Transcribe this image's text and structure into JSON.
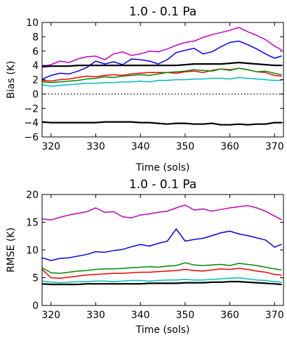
{
  "chart_data": [
    {
      "type": "line",
      "title": "1.0 - 0.1 Pa",
      "xlabel": "Time (sols)",
      "ylabel": "Bias (K)",
      "xlim": [
        318,
        372
      ],
      "ylim": [
        -6,
        10
      ],
      "xticks": [
        320,
        330,
        340,
        350,
        360,
        370
      ],
      "xtick_labels": [
        "320",
        "330",
        "340",
        "350",
        "360",
        "370"
      ],
      "yticks": [
        -6,
        -4,
        -2,
        0,
        2,
        4,
        6,
        8,
        10
      ],
      "ytick_labels": [
        "−6",
        "−4",
        "−2",
        "0",
        "2",
        "4",
        "6",
        "8",
        "10"
      ],
      "grid": false,
      "zero_line": {
        "y": 0,
        "style": "dotted",
        "color": "#000000"
      },
      "series": [
        {
          "color": "#c000c0",
          "x": [
            318,
            320,
            322,
            324,
            326,
            328,
            330,
            332,
            334,
            336,
            338,
            340,
            342,
            344,
            346,
            348,
            350,
            352,
            354,
            356,
            358,
            360,
            362,
            364,
            366,
            368,
            370,
            371.5
          ],
          "values": [
            3.9,
            4.1,
            4.6,
            4.4,
            4.9,
            5.2,
            5.3,
            4.8,
            5.6,
            5.9,
            5.4,
            5.6,
            6.0,
            5.9,
            6.3,
            6.8,
            7.2,
            7.4,
            7.9,
            8.3,
            8.6,
            8.9,
            9.3,
            8.7,
            8.2,
            7.6,
            6.7,
            6.2
          ]
        },
        {
          "color": "#0000ee",
          "x": [
            318,
            320,
            322,
            324,
            326,
            328,
            330,
            332,
            334,
            336,
            338,
            340,
            342,
            344,
            346,
            348,
            350,
            352,
            354,
            356,
            358,
            360,
            362,
            364,
            366,
            368,
            370,
            371.5
          ],
          "values": [
            2.1,
            2.6,
            2.9,
            2.8,
            3.2,
            3.7,
            4.6,
            4.2,
            4.5,
            4.1,
            4.9,
            4.8,
            4.6,
            4.2,
            4.8,
            5.8,
            6.1,
            6.4,
            5.6,
            5.9,
            6.6,
            7.2,
            7.4,
            6.9,
            6.3,
            5.6,
            5.0,
            5.3
          ]
        },
        {
          "color": "#000000",
          "x": [
            318,
            320,
            322,
            324,
            326,
            328,
            330,
            332,
            334,
            336,
            338,
            340,
            342,
            344,
            346,
            348,
            350,
            352,
            354,
            356,
            358,
            360,
            362,
            364,
            366,
            368,
            370,
            371.5
          ],
          "values": [
            3.8,
            3.9,
            3.9,
            3.9,
            4.0,
            4.0,
            4.0,
            4.0,
            4.0,
            4.0,
            4.0,
            4.0,
            4.0,
            4.0,
            4.0,
            4.0,
            4.1,
            4.2,
            4.2,
            4.2,
            4.2,
            4.3,
            4.4,
            4.3,
            4.2,
            4.1,
            4.0,
            4.0
          ]
        },
        {
          "color": "#ee0000",
          "x": [
            318,
            320,
            322,
            324,
            326,
            328,
            330,
            332,
            334,
            336,
            338,
            340,
            342,
            344,
            346,
            348,
            350,
            352,
            354,
            356,
            358,
            360,
            362,
            364,
            366,
            368,
            370,
            371.5
          ],
          "values": [
            1.9,
            1.8,
            2.0,
            2.1,
            2.3,
            2.5,
            2.4,
            2.6,
            2.7,
            2.6,
            2.8,
            2.9,
            3.0,
            3.0,
            3.0,
            2.9,
            3.1,
            3.2,
            3.0,
            3.3,
            3.5,
            3.4,
            3.6,
            3.4,
            3.1,
            3.0,
            2.6,
            2.5
          ]
        },
        {
          "color": "#008800",
          "x": [
            318,
            320,
            322,
            324,
            326,
            328,
            330,
            332,
            334,
            336,
            338,
            340,
            342,
            344,
            346,
            348,
            350,
            352,
            354,
            356,
            358,
            360,
            362,
            364,
            366,
            368,
            370,
            371.5
          ],
          "values": [
            1.7,
            1.6,
            1.7,
            1.8,
            1.9,
            2.1,
            2.2,
            2.4,
            2.3,
            2.5,
            2.6,
            2.7,
            2.6,
            2.8,
            3.0,
            3.1,
            3.2,
            3.4,
            3.3,
            3.2,
            3.5,
            3.3,
            3.6,
            3.4,
            3.1,
            3.2,
            2.9,
            2.7
          ]
        },
        {
          "color": "#00bbbb",
          "x": [
            318,
            320,
            322,
            324,
            326,
            328,
            330,
            332,
            334,
            336,
            338,
            340,
            342,
            344,
            346,
            348,
            350,
            352,
            354,
            356,
            358,
            360,
            362,
            364,
            366,
            368,
            370,
            371.5
          ],
          "values": [
            1.3,
            1.1,
            1.2,
            1.3,
            1.4,
            1.5,
            1.5,
            1.6,
            1.6,
            1.7,
            1.7,
            1.8,
            1.7,
            1.9,
            1.9,
            2.0,
            2.0,
            2.1,
            2.1,
            2.2,
            2.2,
            2.1,
            2.3,
            2.2,
            2.1,
            2.0,
            1.9,
            1.9
          ]
        },
        {
          "color": "#000000",
          "x": [
            318,
            320,
            322,
            324,
            326,
            328,
            330,
            332,
            334,
            336,
            338,
            340,
            342,
            344,
            346,
            348,
            350,
            352,
            354,
            356,
            358,
            360,
            362,
            364,
            366,
            368,
            370,
            371.5
          ],
          "values": [
            -3.9,
            -4.0,
            -4.0,
            -4.0,
            -4.0,
            -4.0,
            -4.0,
            -3.9,
            -3.9,
            -3.9,
            -3.9,
            -4.0,
            -4.0,
            -4.1,
            -4.2,
            -4.1,
            -4.1,
            -4.2,
            -4.2,
            -4.1,
            -4.3,
            -4.3,
            -4.2,
            -4.3,
            -4.2,
            -4.2,
            -4.0,
            -4.0
          ]
        }
      ]
    },
    {
      "type": "line",
      "title": "1.0 - 0.1 Pa",
      "xlabel": "Time (sols)",
      "ylabel": "RMSE (K)",
      "xlim": [
        318,
        372
      ],
      "ylim": [
        0,
        20
      ],
      "xticks": [
        320,
        330,
        340,
        350,
        360,
        370
      ],
      "xtick_labels": [
        "320",
        "330",
        "340",
        "350",
        "360",
        "370"
      ],
      "yticks": [
        0,
        5,
        10,
        15,
        20
      ],
      "ytick_labels": [
        "0",
        "5",
        "10",
        "15",
        "20"
      ],
      "grid": false,
      "series": [
        {
          "color": "#c000c0",
          "x": [
            318,
            320,
            322,
            324,
            326,
            328,
            330,
            332,
            334,
            336,
            338,
            340,
            342,
            344,
            346,
            348,
            350,
            352,
            354,
            356,
            358,
            360,
            362,
            364,
            366,
            368,
            370,
            371.5
          ],
          "values": [
            15.6,
            15.4,
            15.9,
            16.3,
            16.6,
            16.9,
            17.6,
            16.8,
            16.9,
            16.0,
            15.8,
            16.3,
            16.5,
            16.8,
            17.0,
            17.6,
            18.1,
            17.2,
            17.4,
            17.0,
            17.3,
            17.6,
            17.8,
            18.0,
            17.6,
            17.0,
            16.1,
            15.5
          ]
        },
        {
          "color": "#0000ee",
          "x": [
            318,
            320,
            322,
            324,
            326,
            328,
            330,
            332,
            334,
            336,
            338,
            340,
            342,
            344,
            346,
            348,
            350,
            352,
            354,
            356,
            358,
            360,
            362,
            364,
            366,
            368,
            370,
            371.5
          ],
          "values": [
            8.6,
            8.1,
            8.5,
            8.6,
            8.9,
            9.2,
            9.7,
            9.6,
            9.9,
            10.1,
            10.6,
            11.0,
            10.7,
            11.2,
            11.6,
            13.8,
            11.6,
            11.9,
            12.1,
            12.6,
            13.1,
            13.4,
            12.9,
            12.6,
            12.2,
            11.8,
            10.5,
            11.0
          ]
        },
        {
          "color": "#008800",
          "x": [
            318,
            320,
            322,
            324,
            326,
            328,
            330,
            332,
            334,
            336,
            338,
            340,
            342,
            344,
            346,
            348,
            350,
            352,
            354,
            356,
            358,
            360,
            362,
            364,
            366,
            368,
            370,
            371.5
          ],
          "values": [
            6.8,
            5.9,
            5.8,
            6.0,
            6.2,
            6.3,
            6.5,
            6.6,
            6.6,
            6.7,
            6.8,
            6.9,
            7.0,
            6.9,
            7.1,
            7.2,
            7.7,
            7.3,
            7.2,
            7.3,
            7.4,
            7.2,
            7.6,
            7.4,
            7.2,
            6.9,
            6.6,
            6.4
          ]
        },
        {
          "color": "#ee0000",
          "x": [
            318,
            320,
            322,
            324,
            326,
            328,
            330,
            332,
            334,
            336,
            338,
            340,
            342,
            344,
            346,
            348,
            350,
            352,
            354,
            356,
            358,
            360,
            362,
            364,
            366,
            368,
            370,
            371.5
          ],
          "values": [
            6.5,
            5.0,
            4.9,
            5.1,
            5.3,
            5.5,
            5.6,
            5.7,
            5.8,
            5.8,
            5.9,
            6.0,
            6.0,
            6.1,
            6.2,
            6.3,
            6.5,
            6.3,
            6.2,
            6.4,
            6.6,
            6.5,
            6.7,
            6.5,
            6.2,
            6.0,
            5.6,
            5.5
          ]
        },
        {
          "color": "#00bbbb",
          "x": [
            318,
            320,
            322,
            324,
            326,
            328,
            330,
            332,
            334,
            336,
            338,
            340,
            342,
            344,
            346,
            348,
            350,
            352,
            354,
            356,
            358,
            360,
            362,
            364,
            366,
            368,
            370,
            371.5
          ],
          "values": [
            4.4,
            4.2,
            4.1,
            4.2,
            4.3,
            4.3,
            4.4,
            4.4,
            4.3,
            4.4,
            4.5,
            4.5,
            4.4,
            4.5,
            4.6,
            4.6,
            4.7,
            4.6,
            4.6,
            4.7,
            4.8,
            4.9,
            5.0,
            4.8,
            4.6,
            4.5,
            4.3,
            4.2
          ]
        },
        {
          "color": "#000000",
          "x": [
            318,
            320,
            322,
            324,
            326,
            328,
            330,
            332,
            334,
            336,
            338,
            340,
            342,
            344,
            346,
            348,
            350,
            352,
            354,
            356,
            358,
            360,
            362,
            364,
            366,
            368,
            370,
            371.5
          ],
          "values": [
            3.9,
            3.8,
            3.8,
            3.8,
            3.8,
            3.9,
            3.9,
            3.9,
            3.9,
            3.9,
            3.9,
            3.9,
            4.0,
            4.0,
            4.0,
            4.0,
            4.1,
            4.1,
            4.1,
            4.2,
            4.2,
            4.3,
            4.3,
            4.2,
            4.1,
            4.0,
            3.9,
            3.8
          ]
        }
      ]
    }
  ]
}
